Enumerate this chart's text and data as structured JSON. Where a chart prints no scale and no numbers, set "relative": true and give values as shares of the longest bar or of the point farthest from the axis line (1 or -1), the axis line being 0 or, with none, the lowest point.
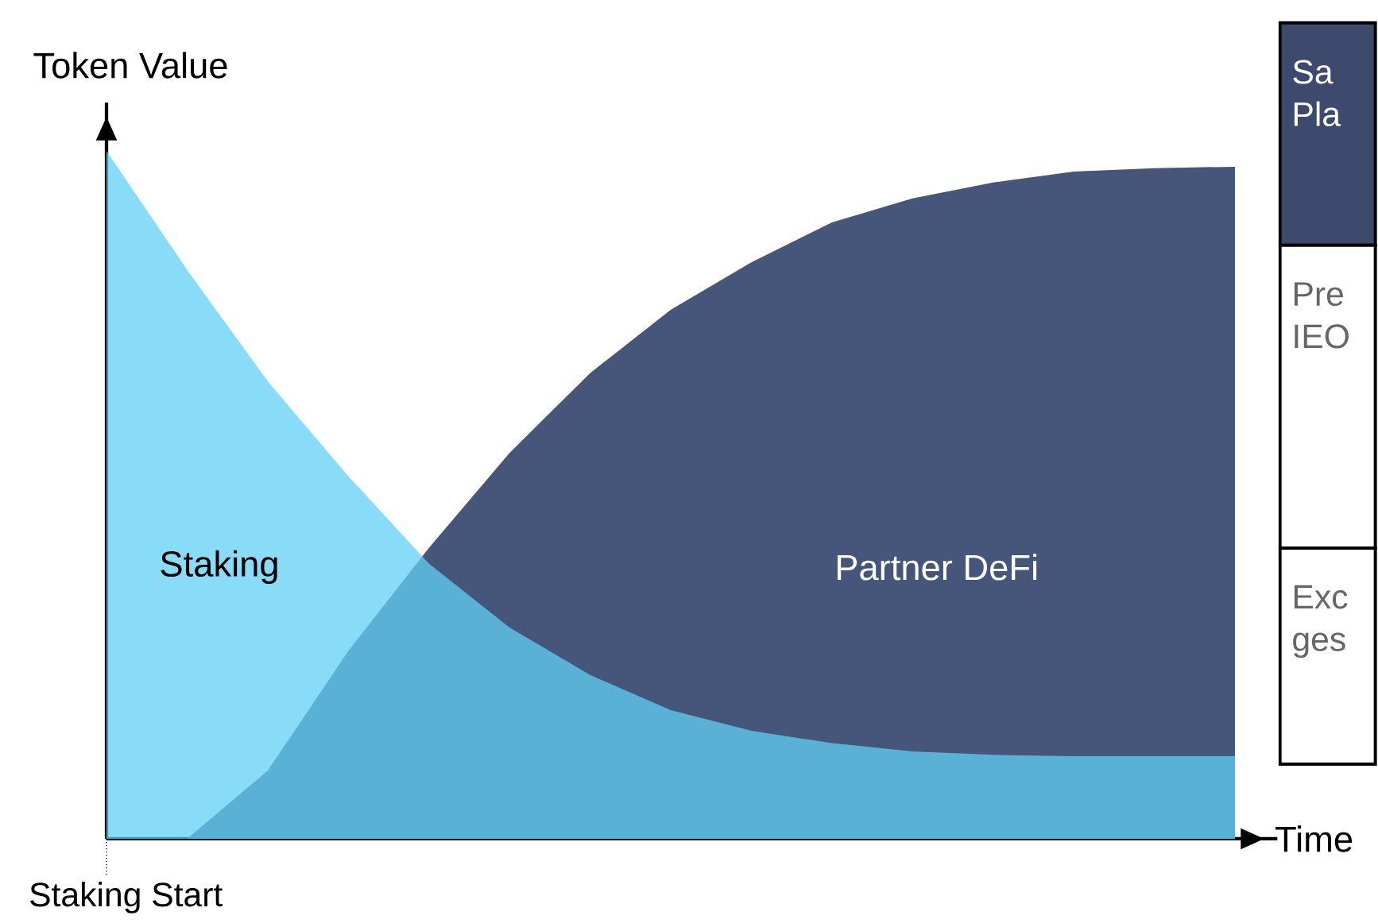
{
  "chart_data": {
    "type": "area",
    "relative": true,
    "xlabel": "Time",
    "ylabel": "Token Value",
    "categories": [
      null,
      null,
      null,
      null,
      null,
      null,
      null,
      null,
      null,
      null,
      null,
      null,
      null,
      null,
      null
    ],
    "series": [
      {
        "name": "Staking",
        "color": "#62d0f6",
        "values": [
          1.0,
          0.827,
          0.665,
          0.527,
          0.4,
          0.307,
          0.238,
          0.187,
          0.157,
          0.139,
          0.127,
          0.122,
          0.12,
          0.12,
          0.12
        ]
      },
      {
        "name": "Partner DeFi",
        "color": "#46557a",
        "values": [
          0,
          0,
          0.099,
          0.273,
          0.423,
          0.561,
          0.677,
          0.769,
          0.838,
          0.896,
          0.931,
          0.954,
          0.97,
          0.975,
          0.977
        ]
      }
    ],
    "annotations": [
      "Staking Start",
      "Sa Pla",
      "Pre IEO",
      "Exc ges"
    ]
  }
}
